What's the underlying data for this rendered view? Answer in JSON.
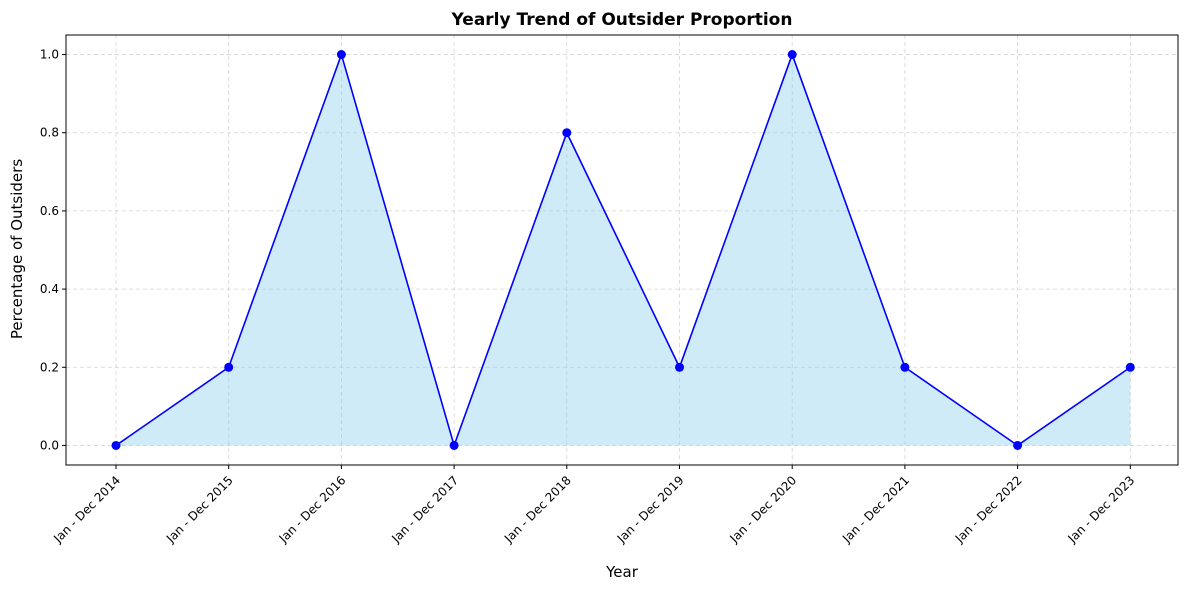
{
  "chart_data": {
    "type": "area",
    "title": "Yearly Trend of Outsider Proportion",
    "xlabel": "Year",
    "ylabel": "Percentage of Outsiders",
    "categories": [
      "Jan - Dec 2014",
      "Jan - Dec 2015",
      "Jan - Dec 2016",
      "Jan - Dec 2017",
      "Jan - Dec 2018",
      "Jan - Dec 2019",
      "Jan - Dec 2020",
      "Jan - Dec 2021",
      "Jan - Dec 2022",
      "Jan - Dec 2023"
    ],
    "series": [
      {
        "values": [
          0.0,
          0.2,
          1.0,
          0.0,
          0.8,
          0.2,
          1.0,
          0.2,
          0.0,
          0.2
        ],
        "line_color": "#0000ff",
        "fill_color": "#87ceeb",
        "marker": "circle"
      }
    ],
    "ylim": [
      -0.05,
      1.05
    ],
    "yticks": [
      "0.0",
      "0.2",
      "0.4",
      "0.6",
      "0.8",
      "1.0"
    ],
    "grid": true,
    "grid_style": "dashed",
    "legend": "none"
  }
}
